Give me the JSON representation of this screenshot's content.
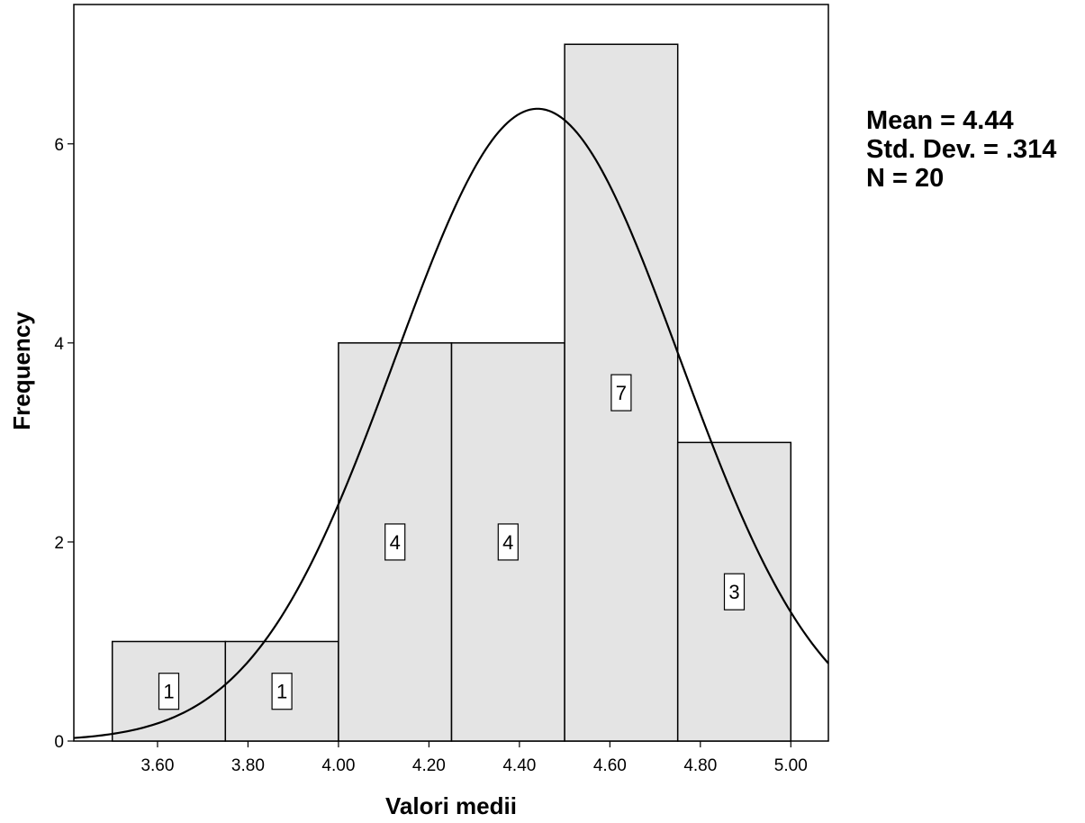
{
  "chart_data": {
    "type": "bar",
    "subtype": "histogram",
    "xlabel": "Valori medii",
    "ylabel": "Frequency",
    "bins": [
      {
        "from": 3.5,
        "to": 3.75,
        "count": 1
      },
      {
        "from": 3.75,
        "to": 4.0,
        "count": 1
      },
      {
        "from": 4.0,
        "to": 4.25,
        "count": 4
      },
      {
        "from": 4.25,
        "to": 4.5,
        "count": 4
      },
      {
        "from": 4.5,
        "to": 4.75,
        "count": 7
      },
      {
        "from": 4.75,
        "to": 5.0,
        "count": 3
      }
    ],
    "x_ticks": [
      3.6,
      3.8,
      4.0,
      4.2,
      4.4,
      4.6,
      4.8,
      5.0
    ],
    "x_tick_labels": [
      "3.60",
      "3.80",
      "4.00",
      "4.20",
      "4.40",
      "4.60",
      "4.80",
      "5.00"
    ],
    "y_ticks": [
      0,
      2,
      4,
      6
    ],
    "y_tick_labels": [
      "0",
      "2",
      "4",
      "6"
    ],
    "xlim": [
      3.415,
      5.083
    ],
    "ylim": [
      0,
      7.4
    ],
    "normal_curve": {
      "mean": 4.44,
      "std": 0.314,
      "n": 20,
      "bin_width": 0.25
    },
    "bar_fill": "#e4e4e4",
    "bar_stroke": "#000000",
    "grid": false,
    "stats": {
      "mean": "Mean = 4.44",
      "std": "Std. Dev. = .314",
      "n": "N = 20"
    }
  }
}
